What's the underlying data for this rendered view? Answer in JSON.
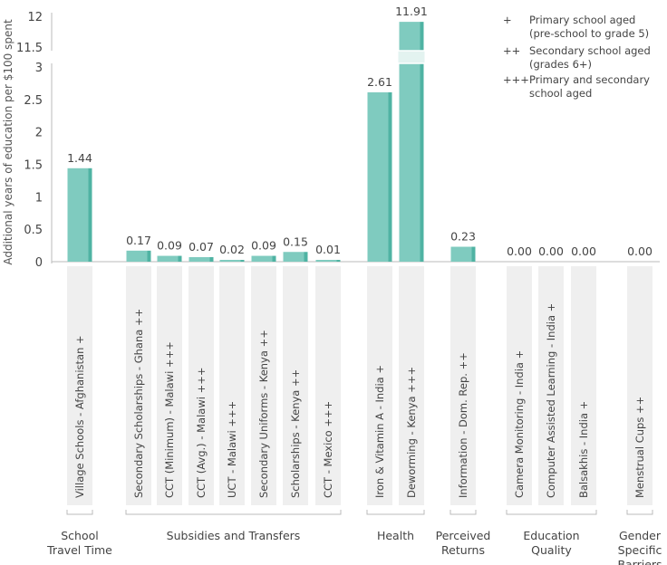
{
  "chart_data": {
    "type": "bar",
    "ylabel": "Additional years of education per $100 spent",
    "y_axis_break": {
      "lower_range": [
        0,
        3
      ],
      "upper_range": [
        11.5,
        12
      ]
    },
    "yticks_lower": [
      "0",
      "0.5",
      "1",
      "1.5",
      "2",
      "2.5",
      "3"
    ],
    "yticks_upper": [
      "11.5",
      "12"
    ],
    "grid": false,
    "legend_position": "top-right",
    "legend": [
      {
        "symbol": "+",
        "text": "Primary school aged (pre-school to grade 5)"
      },
      {
        "symbol": "++",
        "text": "Secondary school aged (grades 6+)"
      },
      {
        "symbol": "+++",
        "text": "Primary and secondary school aged"
      }
    ],
    "categories": [
      "Village Schools - Afghanistan +",
      "Secondary Scholarships - Ghana ++",
      "CCT (Minimum) - Malawi +++",
      "CCT (Avg.) - Malawi +++",
      "UCT - Malawi +++",
      "Secondary Uniforms - Kenya ++",
      "Scholarships - Kenya ++",
      "CCT - Mexico +++",
      "Iron & Vitamin A - India +",
      "Deworming - Kenya +++",
      "Information - Dom. Rep. ++",
      "Camera Monitoring - India +",
      "Computer Assisted Learning - India +",
      "Balsakhis - India +",
      "Menstrual Cups ++"
    ],
    "values": [
      1.44,
      0.17,
      0.09,
      0.07,
      0.02,
      0.09,
      0.15,
      0.01,
      2.61,
      11.91,
      0.23,
      0.0,
      0.0,
      0.0,
      0.0
    ],
    "value_labels": [
      "1.44",
      "0.17",
      "0.09",
      "0.07",
      "0.02",
      "0.09",
      "0.15",
      "0.01",
      "2.61",
      "11.91",
      "0.23",
      "0.00",
      "0.00",
      "0.00",
      "0.00"
    ],
    "groups": [
      {
        "label": "School Travel Time",
        "start": 0,
        "end": 0
      },
      {
        "label": "Subsidies and Transfers",
        "start": 1,
        "end": 7
      },
      {
        "label": "Health",
        "start": 8,
        "end": 9
      },
      {
        "label": "Perceived Returns",
        "start": 10,
        "end": 10
      },
      {
        "label": "Education Quality",
        "start": 11,
        "end": 13
      },
      {
        "label": "Gender Specific Barriers",
        "start": 14,
        "end": 14
      }
    ],
    "colors": {
      "bar": "#7fcbbf",
      "bar_side": "#4fb3a3",
      "label_box": "#efefef",
      "axis": "#bbbbbb"
    }
  }
}
